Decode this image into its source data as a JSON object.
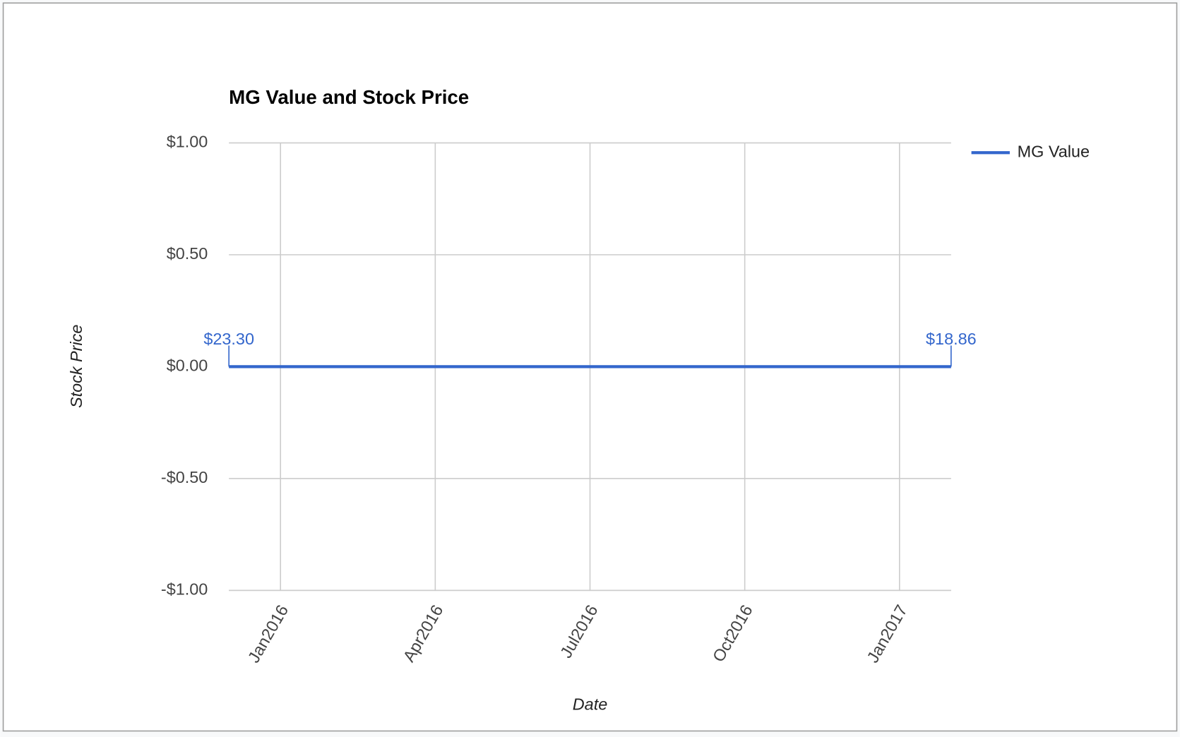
{
  "chart_data": {
    "type": "line",
    "title": "MG Value and Stock Price",
    "x_label": "Date",
    "y_label": "Stock Price",
    "x": [
      "2015-12",
      "2017-02"
    ],
    "series": [
      {
        "name": "MG Value",
        "color": "#3366cc",
        "values": [
          0,
          0
        ]
      }
    ],
    "annotations": [
      "$23.30",
      "$18.86"
    ],
    "xlim": [
      "2015-12",
      "2017-02"
    ],
    "xticks": [
      {
        "value": "2016-01",
        "label": "Jan2016"
      },
      {
        "value": "2016-04",
        "label": "Apr2016"
      },
      {
        "value": "2016-07",
        "label": "Jul2016"
      },
      {
        "value": "2016-10",
        "label": "Oct2016"
      },
      {
        "value": "2017-01",
        "label": "Jan2017"
      }
    ],
    "ylim": [
      -1,
      1
    ],
    "yticks": [
      {
        "value": -1,
        "label": "-$1.00"
      },
      {
        "value": -0.5,
        "label": "-$0.50"
      },
      {
        "value": 0,
        "label": "$0.00"
      },
      {
        "value": 0.5,
        "label": "$0.50"
      },
      {
        "value": 1,
        "label": "$1.00"
      }
    ],
    "grid": true,
    "legend": "right"
  }
}
